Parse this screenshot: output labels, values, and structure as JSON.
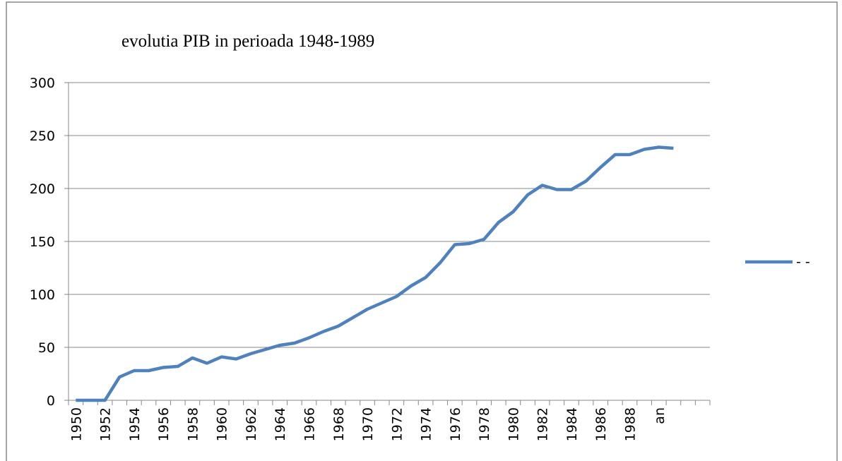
{
  "chart_data": {
    "type": "line",
    "title": "evolutia PIB in perioada 1948-1989",
    "categories": [
      "1950",
      null,
      "1952",
      null,
      "1954",
      null,
      "1956",
      null,
      "1958",
      null,
      "1960",
      null,
      "1962",
      null,
      "1964",
      null,
      "1966",
      null,
      "1968",
      null,
      "1970",
      null,
      "1972",
      null,
      "1974",
      null,
      "1976",
      null,
      "1978",
      null,
      "1980",
      null,
      "1982",
      null,
      "1984",
      null,
      "1986",
      null,
      "1988",
      null,
      "an",
      null,
      null,
      null
    ],
    "series": [
      {
        "name": "- -",
        "color": "#4f81bd",
        "values": [
          0,
          0,
          0,
          22,
          28,
          28,
          31,
          32,
          40,
          35,
          41,
          39,
          44,
          48,
          52,
          54,
          59,
          65,
          70,
          78,
          86,
          92,
          98,
          108,
          116,
          130,
          147,
          148,
          152,
          168,
          178,
          194,
          203,
          199,
          199,
          207,
          220,
          232,
          232,
          237,
          239,
          238,
          null,
          null
        ]
      }
    ],
    "ylim": [
      0,
      300
    ],
    "yticks": [
      0,
      50,
      100,
      150,
      200,
      250,
      300
    ],
    "grid": true,
    "legend": "right"
  }
}
